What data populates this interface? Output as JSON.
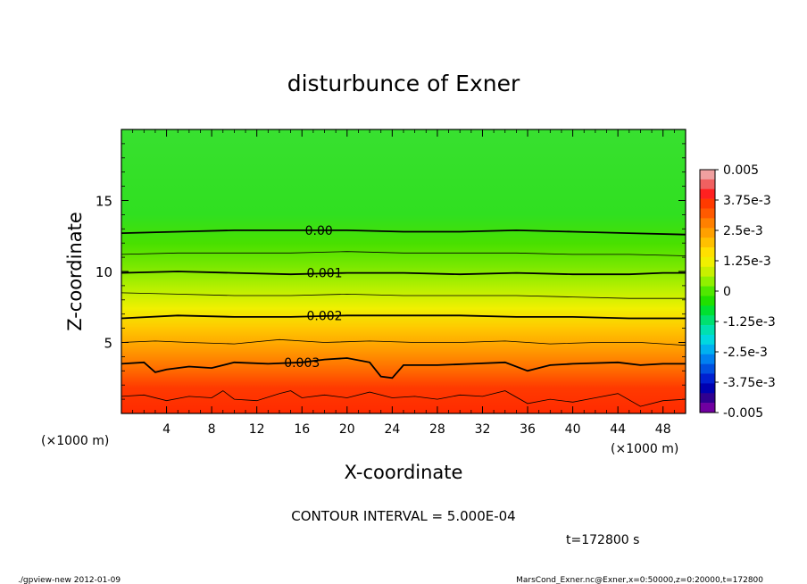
{
  "chart_data": {
    "type": "contour",
    "title": "disturbunce of Exner",
    "xlabel": "X-coordinate",
    "ylabel": "Z-coordinate",
    "x_unit_left": "(×1000 m)",
    "x_unit_right": "(×1000 m)",
    "xlim": [
      0,
      50
    ],
    "ylim": [
      0,
      20
    ],
    "x_ticks": [
      4,
      8,
      12,
      16,
      20,
      24,
      28,
      32,
      36,
      40,
      44,
      48
    ],
    "y_ticks": [
      5,
      10,
      15
    ],
    "contour_interval_text": "CONTOUR INTERVAL = 5.000E-04",
    "time_text": "t=172800 s",
    "footer_left": "./gpview-new  2012-01-09",
    "footer_right": "MarsCond_Exner.nc@Exner,x=0:50000,z=0:20000,t=172800",
    "colorbar": {
      "labels": [
        "0.005",
        "3.75e-3",
        "2.5e-3",
        "1.25e-3",
        "0",
        "-1.25e-3",
        "-2.5e-3",
        "-3.75e-3",
        "-0.005"
      ],
      "colors": [
        "#f0a0a0",
        "#f06060",
        "#ff2020",
        "#ff3a00",
        "#ff5a00",
        "#ff8000",
        "#ffa000",
        "#ffc000",
        "#ffe000",
        "#f0f000",
        "#c8f000",
        "#90f000",
        "#50e800",
        "#20e000",
        "#00e030",
        "#00e070",
        "#00e0b0",
        "#00d8e0",
        "#00b0f0",
        "#0080f0",
        "#0050e0",
        "#0020d0",
        "#0000b0",
        "#300090",
        "#7000a0"
      ]
    },
    "contour_labels": [
      {
        "text": "0.00",
        "x": 17.5,
        "z": 12.9
      },
      {
        "text": "0.001",
        "x": 18,
        "z": 9.9
      },
      {
        "text": "0.002",
        "x": 18,
        "z": 6.9
      },
      {
        "text": "0.003",
        "x": 16,
        "z": 3.6
      }
    ],
    "contour_lines": [
      {
        "level": 0.0,
        "major": true,
        "points": [
          [
            0,
            12.7
          ],
          [
            5,
            12.8
          ],
          [
            10,
            12.9
          ],
          [
            15,
            12.9
          ],
          [
            20,
            12.9
          ],
          [
            25,
            12.8
          ],
          [
            30,
            12.8
          ],
          [
            35,
            12.9
          ],
          [
            40,
            12.8
          ],
          [
            45,
            12.7
          ],
          [
            50,
            12.6
          ]
        ]
      },
      {
        "level": 0.0005,
        "major": false,
        "points": [
          [
            0,
            11.2
          ],
          [
            5,
            11.3
          ],
          [
            10,
            11.3
          ],
          [
            15,
            11.3
          ],
          [
            20,
            11.4
          ],
          [
            25,
            11.3
          ],
          [
            30,
            11.3
          ],
          [
            35,
            11.3
          ],
          [
            40,
            11.2
          ],
          [
            45,
            11.2
          ],
          [
            50,
            11.1
          ]
        ]
      },
      {
        "level": 0.001,
        "major": true,
        "points": [
          [
            0,
            9.9
          ],
          [
            5,
            10.0
          ],
          [
            10,
            9.9
          ],
          [
            15,
            9.8
          ],
          [
            20,
            9.9
          ],
          [
            25,
            9.9
          ],
          [
            30,
            9.8
          ],
          [
            35,
            9.9
          ],
          [
            40,
            9.8
          ],
          [
            45,
            9.8
          ],
          [
            48,
            9.9
          ],
          [
            50,
            9.9
          ]
        ]
      },
      {
        "level": 0.0015,
        "major": false,
        "points": [
          [
            0,
            8.5
          ],
          [
            5,
            8.4
          ],
          [
            10,
            8.3
          ],
          [
            15,
            8.3
          ],
          [
            20,
            8.4
          ],
          [
            25,
            8.3
          ],
          [
            30,
            8.3
          ],
          [
            35,
            8.3
          ],
          [
            40,
            8.2
          ],
          [
            45,
            8.1
          ],
          [
            50,
            8.1
          ]
        ]
      },
      {
        "level": 0.002,
        "major": true,
        "points": [
          [
            0,
            6.7
          ],
          [
            5,
            6.9
          ],
          [
            10,
            6.8
          ],
          [
            15,
            6.8
          ],
          [
            20,
            6.9
          ],
          [
            25,
            6.9
          ],
          [
            30,
            6.9
          ],
          [
            35,
            6.8
          ],
          [
            40,
            6.8
          ],
          [
            45,
            6.7
          ],
          [
            50,
            6.7
          ]
        ]
      },
      {
        "level": 0.0025,
        "major": false,
        "points": [
          [
            0,
            5.0
          ],
          [
            3,
            5.1
          ],
          [
            6,
            5.0
          ],
          [
            10,
            4.9
          ],
          [
            14,
            5.2
          ],
          [
            18,
            5.0
          ],
          [
            22,
            5.1
          ],
          [
            26,
            5.0
          ],
          [
            30,
            5.0
          ],
          [
            34,
            5.1
          ],
          [
            38,
            4.9
          ],
          [
            42,
            5.0
          ],
          [
            46,
            5.0
          ],
          [
            50,
            4.8
          ]
        ]
      },
      {
        "level": 0.003,
        "major": true,
        "points": [
          [
            0,
            3.5
          ],
          [
            2,
            3.6
          ],
          [
            3,
            2.9
          ],
          [
            4,
            3.1
          ],
          [
            6,
            3.3
          ],
          [
            8,
            3.2
          ],
          [
            10,
            3.6
          ],
          [
            13,
            3.5
          ],
          [
            16,
            3.6
          ],
          [
            18,
            3.8
          ],
          [
            20,
            3.9
          ],
          [
            22,
            3.6
          ],
          [
            23,
            2.6
          ],
          [
            24,
            2.5
          ],
          [
            25,
            3.4
          ],
          [
            28,
            3.4
          ],
          [
            31,
            3.5
          ],
          [
            34,
            3.6
          ],
          [
            36,
            3.0
          ],
          [
            38,
            3.4
          ],
          [
            40,
            3.5
          ],
          [
            44,
            3.6
          ],
          [
            46,
            3.4
          ],
          [
            48,
            3.5
          ],
          [
            50,
            3.5
          ]
        ]
      },
      {
        "level": 0.0035,
        "major": false,
        "points": [
          [
            0,
            1.2
          ],
          [
            2,
            1.3
          ],
          [
            4,
            0.9
          ],
          [
            6,
            1.2
          ],
          [
            8,
            1.1
          ],
          [
            9,
            1.6
          ],
          [
            10,
            1.0
          ],
          [
            12,
            0.9
          ],
          [
            14,
            1.4
          ],
          [
            15,
            1.6
          ],
          [
            16,
            1.1
          ],
          [
            18,
            1.3
          ],
          [
            20,
            1.1
          ],
          [
            22,
            1.5
          ],
          [
            24,
            1.1
          ],
          [
            26,
            1.2
          ],
          [
            28,
            1.0
          ],
          [
            30,
            1.3
          ],
          [
            32,
            1.2
          ],
          [
            34,
            1.6
          ],
          [
            36,
            0.7
          ],
          [
            38,
            1.0
          ],
          [
            40,
            0.8
          ],
          [
            42,
            1.1
          ],
          [
            44,
            1.4
          ],
          [
            46,
            0.5
          ],
          [
            48,
            0.9
          ],
          [
            50,
            1.0
          ]
        ]
      }
    ]
  }
}
